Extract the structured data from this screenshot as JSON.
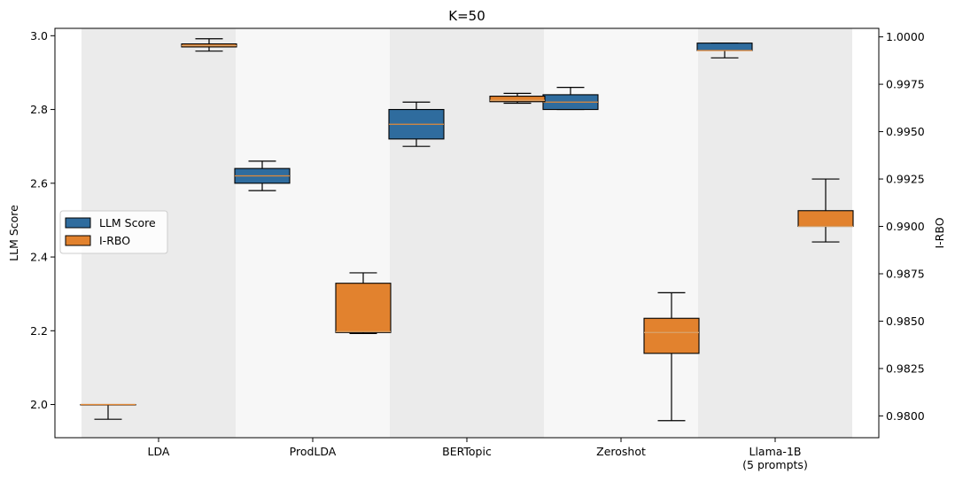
{
  "chart_data": {
    "type": "box",
    "title": "K=50",
    "xlabel": "",
    "ylabel": "LLM Score",
    "y2label": "I-RBO",
    "categories": [
      "LDA",
      "ProdLDA",
      "BERTopic",
      "Zeroshot",
      "Llama-1B\n(5 prompts)"
    ],
    "ylim": [
      1.91,
      3.02
    ],
    "y2lim": [
      0.97885,
      1.00045
    ],
    "yticks": [
      "2.0",
      "2.2",
      "2.4",
      "2.6",
      "2.8",
      "3.0"
    ],
    "y2ticks": [
      "0.9800",
      "0.9825",
      "0.9850",
      "0.9875",
      "0.9900",
      "0.9925",
      "0.9950",
      "0.9975",
      "1.0000"
    ],
    "legend_position": "center-left",
    "band_colors": [
      "#ebebeb",
      "#f7f7f7",
      "#ebebeb",
      "#f7f7f7",
      "#ebebeb"
    ],
    "series": [
      {
        "name": "LLM Score",
        "axis": "left",
        "color": "#2f6c9e",
        "median_color": "#e28a3a",
        "boxes": [
          {
            "whislo": 1.96,
            "q1": 2.0,
            "med": 2.0,
            "q3": 2.0,
            "whishi": 2.0
          },
          {
            "whislo": 2.58,
            "q1": 2.6,
            "med": 2.62,
            "q3": 2.64,
            "whishi": 2.66
          },
          {
            "whislo": 2.7,
            "q1": 2.72,
            "med": 2.76,
            "q3": 2.8,
            "whishi": 2.82
          },
          {
            "whislo": 2.8,
            "q1": 2.8,
            "med": 2.82,
            "q3": 2.84,
            "whishi": 2.86
          },
          {
            "whislo": 2.94,
            "q1": 2.96,
            "med": 2.96,
            "q3": 2.98,
            "whishi": 2.98
          }
        ]
      },
      {
        "name": "I-RBO",
        "axis": "right",
        "color": "#e2822e",
        "median_color": "#d9a066",
        "boxes": [
          {
            "whislo": 0.99925,
            "q1": 0.99947,
            "med": 0.99954,
            "q3": 0.99963,
            "whishi": 0.9999
          },
          {
            "whislo": 0.98435,
            "q1": 0.9844,
            "med": 0.98445,
            "q3": 0.987,
            "whishi": 0.98755
          },
          {
            "whislo": 0.9965,
            "q1": 0.99658,
            "med": 0.99665,
            "q3": 0.99687,
            "whishi": 0.99702
          },
          {
            "whislo": 0.97975,
            "q1": 0.9833,
            "med": 0.9844,
            "q3": 0.98515,
            "whishi": 0.9865
          },
          {
            "whislo": 0.98918,
            "q1": 0.99,
            "med": 0.99,
            "q3": 0.99083,
            "whishi": 0.9925
          }
        ]
      }
    ]
  }
}
